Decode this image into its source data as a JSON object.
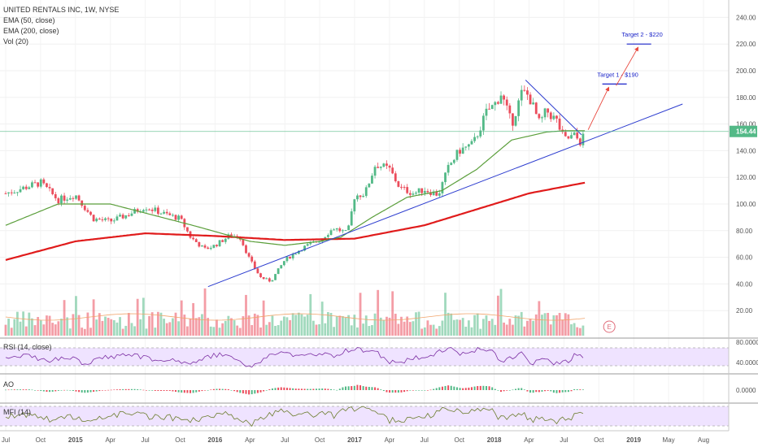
{
  "header": {
    "title": "UNITED RENTALS INC, 1W, NYSE",
    "studies": [
      "EMA (50, close)",
      "EMA (200, close)",
      "Vol (20)"
    ]
  },
  "panes": {
    "rsi_label": "RSI (14, close)",
    "ao_label": "AO",
    "mfi_label": "MFI (14)"
  },
  "colors": {
    "up": "#53b987",
    "down": "#eb4d5c",
    "ema50": "#5a9e3a",
    "ema200": "#e01b1b",
    "trendline": "#2c3ccf",
    "target_arrow": "#e8463c",
    "target_line": "#1a23c9",
    "price_line": "#53b987",
    "osc_fill": "#efe3ff"
  },
  "chart_data": {
    "type": "candlestick",
    "symbol": "UNITED RENTALS INC",
    "interval": "1W",
    "exchange": "NYSE",
    "x_labels": [
      "Jul",
      "Oct",
      "2015",
      "Apr",
      "Jul",
      "Oct",
      "2016",
      "Apr",
      "Jul",
      "Oct",
      "2017",
      "Apr",
      "Jul",
      "Oct",
      "2018",
      "Apr",
      "Jul",
      "Oct",
      "2019",
      "May",
      "Aug"
    ],
    "y_ticks": [
      "240.00",
      "220.00",
      "200.00",
      "180.00",
      "160.00",
      "140.00",
      "120.00",
      "100.00",
      "80.00",
      "60.00",
      "40.00",
      "20.00"
    ],
    "ylim": [
      0,
      245
    ],
    "last_price": "154.44",
    "price_anchors": [
      {
        "t": 0.0,
        "v": 108
      },
      {
        "t": 0.5,
        "v": 112
      },
      {
        "t": 1.0,
        "v": 116
      },
      {
        "t": 1.5,
        "v": 103
      },
      {
        "t": 2.0,
        "v": 107
      },
      {
        "t": 2.5,
        "v": 89
      },
      {
        "t": 3.0,
        "v": 87
      },
      {
        "t": 3.5,
        "v": 92
      },
      {
        "t": 4.0,
        "v": 98
      },
      {
        "t": 4.5,
        "v": 93
      },
      {
        "t": 5.0,
        "v": 89
      },
      {
        "t": 5.3,
        "v": 75
      },
      {
        "t": 5.7,
        "v": 66
      },
      {
        "t": 6.0,
        "v": 69
      },
      {
        "t": 6.4,
        "v": 76
      },
      {
        "t": 6.7,
        "v": 76
      },
      {
        "t": 7.0,
        "v": 58
      },
      {
        "t": 7.3,
        "v": 45
      },
      {
        "t": 7.6,
        "v": 42
      },
      {
        "t": 8.0,
        "v": 58
      },
      {
        "t": 8.5,
        "v": 67
      },
      {
        "t": 9.0,
        "v": 73
      },
      {
        "t": 9.4,
        "v": 82
      },
      {
        "t": 9.8,
        "v": 78
      },
      {
        "t": 10.0,
        "v": 106
      },
      {
        "t": 10.3,
        "v": 108
      },
      {
        "t": 10.6,
        "v": 130
      },
      {
        "t": 11.0,
        "v": 126
      },
      {
        "t": 11.3,
        "v": 112
      },
      {
        "t": 11.7,
        "v": 108
      },
      {
        "t": 12.0,
        "v": 111
      },
      {
        "t": 12.4,
        "v": 107
      },
      {
        "t": 12.7,
        "v": 128
      },
      {
        "t": 13.0,
        "v": 140
      },
      {
        "t": 13.4,
        "v": 145
      },
      {
        "t": 13.8,
        "v": 170
      },
      {
        "t": 14.0,
        "v": 174
      },
      {
        "t": 14.2,
        "v": 183
      },
      {
        "t": 14.5,
        "v": 160
      },
      {
        "t": 14.8,
        "v": 184
      },
      {
        "t": 15.0,
        "v": 181
      },
      {
        "t": 15.3,
        "v": 160
      },
      {
        "t": 15.5,
        "v": 170
      },
      {
        "t": 15.8,
        "v": 162
      },
      {
        "t": 16.0,
        "v": 148
      },
      {
        "t": 16.3,
        "v": 151
      },
      {
        "t": 16.5,
        "v": 146
      },
      {
        "t": 16.6,
        "v": 154.44
      }
    ],
    "ema50": [
      {
        "t": 0.0,
        "v": 84
      },
      {
        "t": 1.5,
        "v": 100
      },
      {
        "t": 3.0,
        "v": 100
      },
      {
        "t": 5.5,
        "v": 83
      },
      {
        "t": 7.0,
        "v": 72
      },
      {
        "t": 8.0,
        "v": 69
      },
      {
        "t": 9.0,
        "v": 72
      },
      {
        "t": 9.6,
        "v": 75
      },
      {
        "t": 10.5,
        "v": 90
      },
      {
        "t": 11.5,
        "v": 105
      },
      {
        "t": 12.5,
        "v": 110
      },
      {
        "t": 13.5,
        "v": 126
      },
      {
        "t": 14.5,
        "v": 148
      },
      {
        "t": 15.5,
        "v": 154
      },
      {
        "t": 16.0,
        "v": 155
      },
      {
        "t": 16.6,
        "v": 155
      }
    ],
    "ema200": [
      {
        "t": 0.0,
        "v": 58
      },
      {
        "t": 2.0,
        "v": 72
      },
      {
        "t": 4.0,
        "v": 78
      },
      {
        "t": 6.0,
        "v": 76
      },
      {
        "t": 8.0,
        "v": 73
      },
      {
        "t": 10.0,
        "v": 74
      },
      {
        "t": 12.0,
        "v": 84
      },
      {
        "t": 14.0,
        "v": 100
      },
      {
        "t": 15.0,
        "v": 108
      },
      {
        "t": 16.6,
        "v": 116
      }
    ],
    "rising_trendline": [
      {
        "t": 5.8,
        "v": 38
      },
      {
        "t": 19.4,
        "v": 175
      }
    ],
    "falling_trendline": [
      {
        "t": 14.9,
        "v": 193
      },
      {
        "t": 16.5,
        "v": 152
      }
    ],
    "targets": [
      {
        "label": "Target 1 - $190",
        "value": 190,
        "t_start": 17.1,
        "t_end": 17.8
      },
      {
        "label": "Target 2 - $220",
        "value": 220,
        "t_start": 17.8,
        "t_end": 18.5
      }
    ],
    "volume_max_note": "volume scale unlabeled",
    "rsi_ticks": [
      "80.0000",
      "40.0000"
    ],
    "ao_ticks": [
      "0.0000"
    ],
    "earnings_marker": "E"
  }
}
